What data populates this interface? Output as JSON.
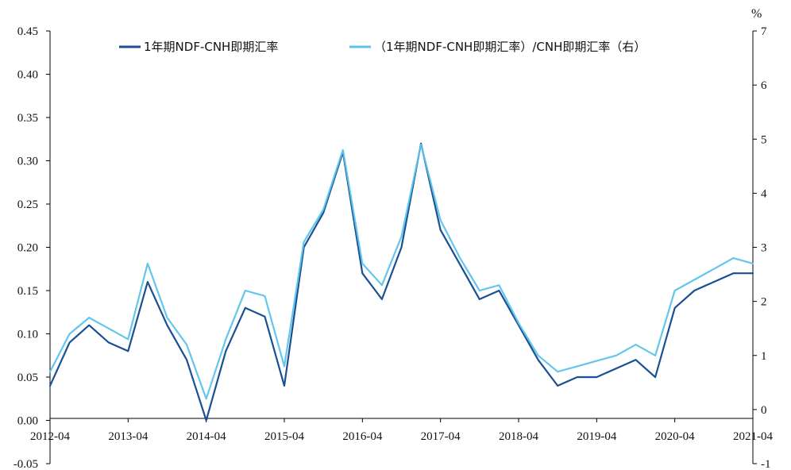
{
  "chart_data": {
    "type": "line",
    "title": "",
    "x": [
      "2012-04",
      "2012-07",
      "2012-10",
      "2013-01",
      "2013-04",
      "2013-07",
      "2013-10",
      "2014-01",
      "2014-04",
      "2014-07",
      "2014-10",
      "2015-01",
      "2015-04",
      "2015-07",
      "2015-10",
      "2016-01",
      "2016-04",
      "2016-07",
      "2016-10",
      "2017-01",
      "2017-04",
      "2017-07",
      "2017-10",
      "2018-01",
      "2018-04",
      "2018-07",
      "2018-10",
      "2019-01",
      "2019-04",
      "2019-07",
      "2019-10",
      "2020-01",
      "2020-04",
      "2020-07",
      "2020-10",
      "2021-01",
      "2021-04"
    ],
    "x_tick_labels": [
      "2012-04",
      "2013-04",
      "2014-04",
      "2015-04",
      "2016-04",
      "2017-04",
      "2018-04",
      "2019-04",
      "2020-04",
      "2021-04"
    ],
    "left_axis": {
      "ylim": [
        -0.05,
        0.45
      ],
      "tick_labels": [
        "-0.05",
        "0.00",
        "0.05",
        "0.10",
        "0.15",
        "0.20",
        "0.25",
        "0.30",
        "0.35",
        "0.40",
        "0.45"
      ]
    },
    "right_axis": {
      "unit": "%",
      "ylim": [
        -1,
        7
      ],
      "tick_labels": [
        "-1",
        "0",
        "1",
        "2",
        "3",
        "4",
        "5",
        "6",
        "7"
      ]
    },
    "legend_position": "top",
    "grid": false,
    "series": [
      {
        "name": "1年期NDF-CNH即期汇率",
        "axis": "left",
        "color": "#1a4f94",
        "values": [
          0.04,
          0.09,
          0.11,
          0.09,
          0.08,
          0.16,
          0.11,
          0.07,
          0.0,
          0.08,
          0.13,
          0.12,
          0.04,
          0.2,
          0.24,
          0.31,
          0.17,
          0.14,
          0.2,
          0.32,
          0.22,
          0.18,
          0.14,
          0.15,
          0.11,
          0.07,
          0.04,
          0.05,
          0.05,
          0.06,
          0.07,
          0.05,
          0.13,
          0.15,
          0.16,
          0.17,
          0.17
        ]
      },
      {
        "name": "（1年期NDF-CNH即期汇率）/CNH即期汇率（右）",
        "axis": "right",
        "color": "#5bc3ea",
        "values": [
          0.7,
          1.4,
          1.7,
          1.5,
          1.3,
          2.7,
          1.7,
          1.2,
          0.2,
          1.3,
          2.2,
          2.1,
          0.8,
          3.1,
          3.7,
          4.8,
          2.7,
          2.3,
          3.2,
          4.9,
          3.5,
          2.8,
          2.2,
          2.3,
          1.6,
          1.0,
          0.7,
          0.8,
          0.9,
          1.0,
          1.2,
          1.0,
          2.2,
          2.4,
          2.6,
          2.8,
          2.7
        ]
      }
    ]
  }
}
